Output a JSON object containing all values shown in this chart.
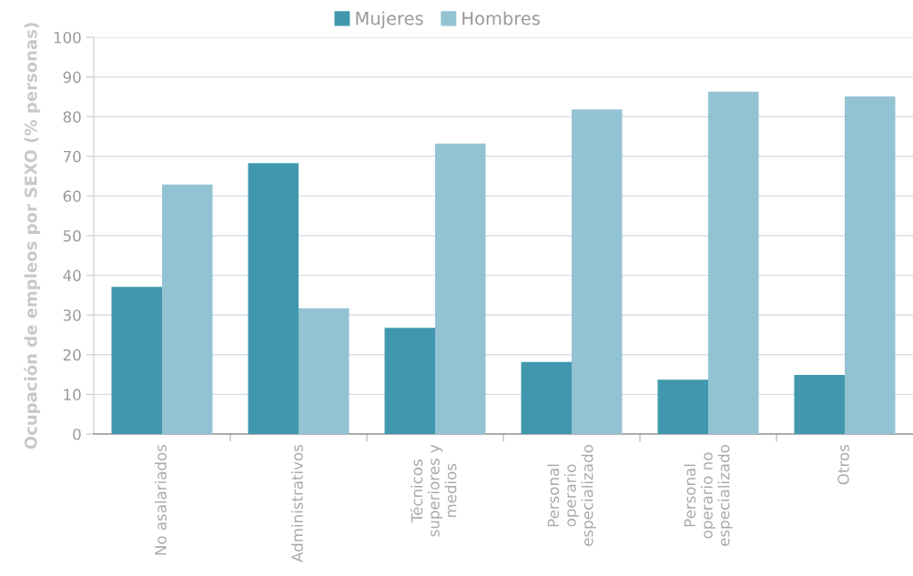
{
  "chart_data": {
    "type": "bar",
    "ylabel": "Ocupación de empleos por SEXO (% personas)",
    "categories": [
      "No asalariados",
      "Administrativos",
      "Técnicos superiores y medios",
      "Personal operario especializado",
      "Personal operario no especializado",
      "Otros"
    ],
    "series": [
      {
        "name": "Mujeres",
        "color": "#4198ae",
        "values": [
          37.1,
          68.3,
          26.8,
          18.2,
          13.7,
          14.9
        ]
      },
      {
        "name": "Hombres",
        "color": "#93c3d3",
        "values": [
          62.9,
          31.7,
          73.2,
          81.8,
          86.3,
          85.1
        ]
      }
    ],
    "ylim": [
      0,
      100
    ],
    "yticks": [
      0,
      10,
      20,
      30,
      40,
      50,
      60,
      70,
      80,
      90,
      100
    ],
    "grid": "y",
    "legend": "top"
  }
}
